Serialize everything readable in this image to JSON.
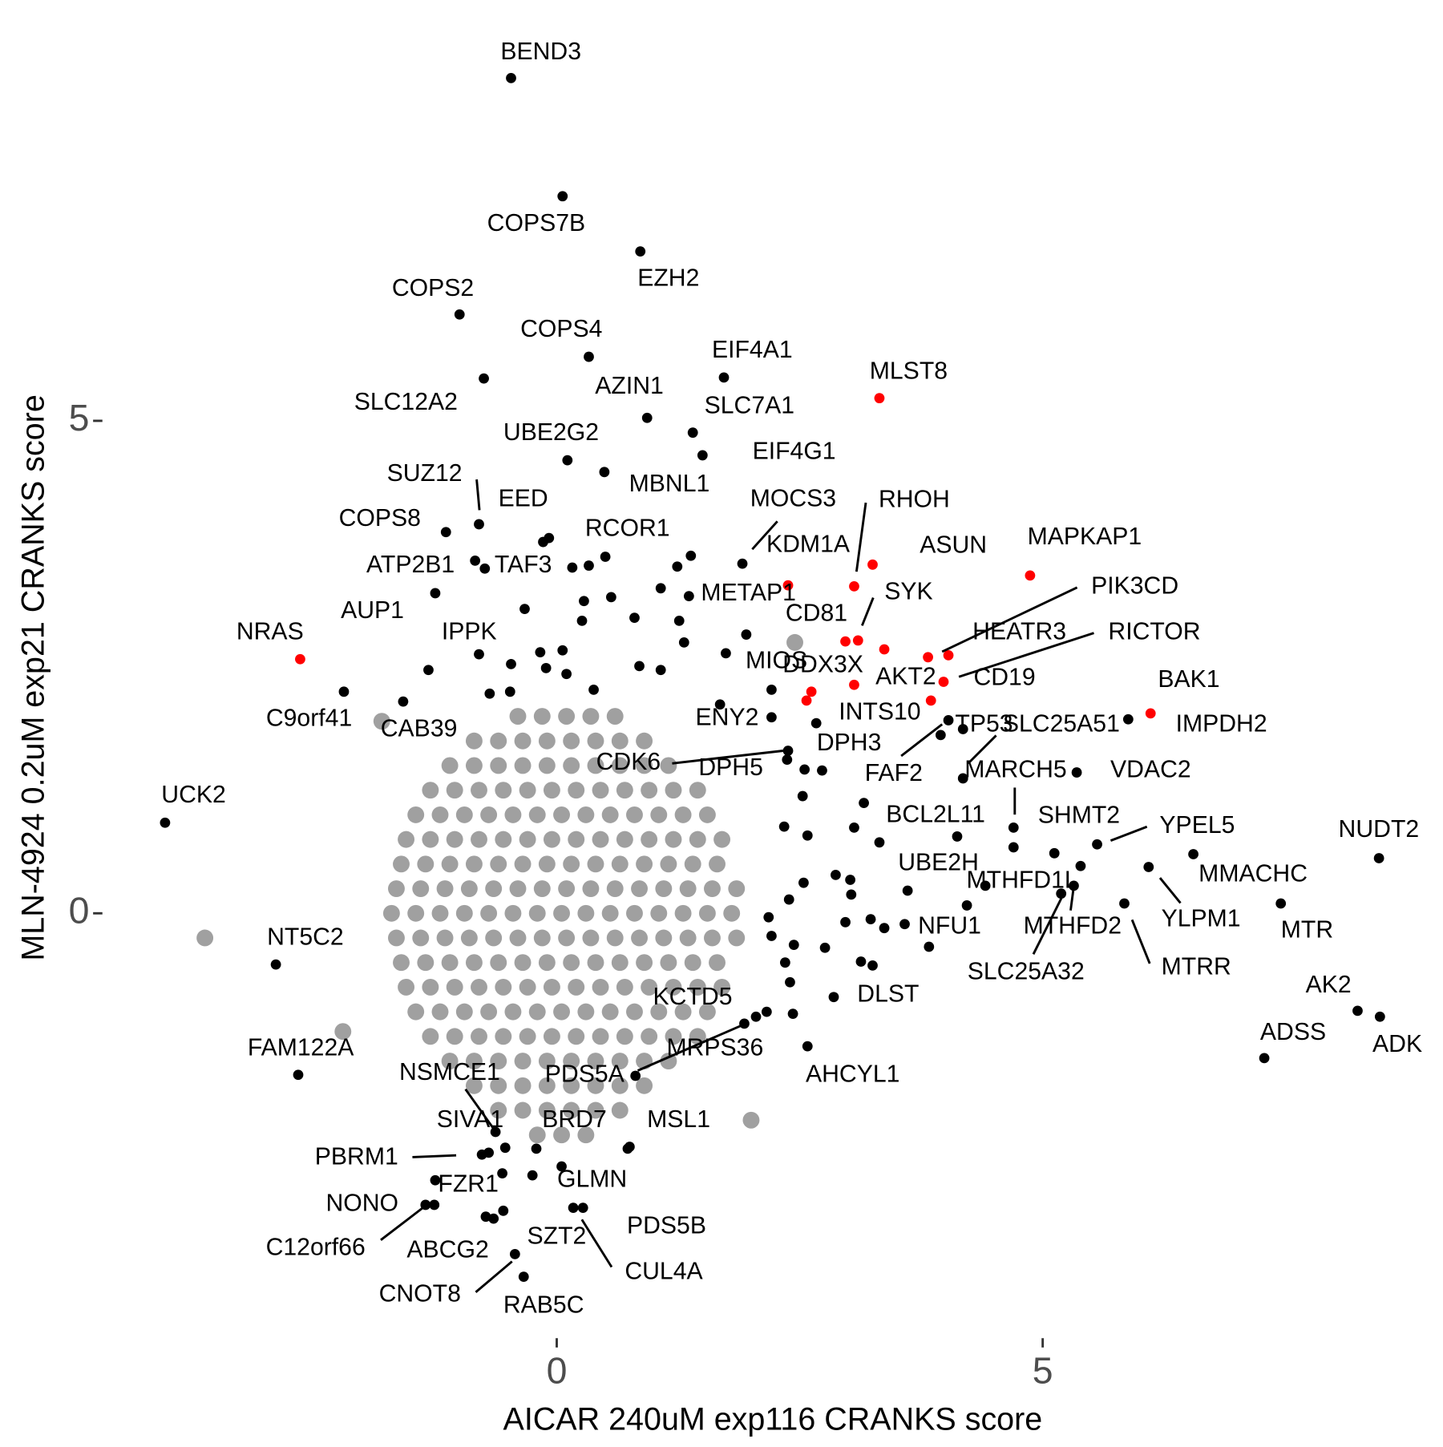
{
  "chart_data": {
    "type": "scatter",
    "xlabel": "AICAR 240uM exp116 CRANKS score",
    "ylabel": "MLN-4924 0.2uM exp21 CRANKS score",
    "xlim": [
      -4.6,
      9.0
    ],
    "ylim": [
      -4.2,
      8.9
    ],
    "xticks": [
      0,
      5
    ],
    "yticks": [
      0,
      5
    ],
    "grid": false,
    "series": [
      {
        "color": "#a0a0a0",
        "x": [
          -0.4,
          -0.15,
          0.1,
          0.35,
          0.6,
          -0.85,
          -0.6,
          -0.35,
          -0.1,
          0.15,
          0.4,
          0.65,
          0.9,
          -1.1,
          -0.85,
          -0.6,
          -0.35,
          -0.1,
          0.15,
          0.4,
          0.65,
          0.9,
          1.15,
          -1.3,
          -1.05,
          -0.8,
          -0.55,
          -0.3,
          -0.05,
          0.2,
          0.45,
          0.7,
          0.95,
          1.2,
          1.45,
          -1.45,
          -1.2,
          -0.95,
          -0.7,
          -0.45,
          -0.2,
          0.05,
          0.3,
          0.55,
          0.8,
          1.05,
          1.3,
          1.55,
          -1.55,
          -1.3,
          -1.05,
          -0.8,
          -0.55,
          -0.3,
          -0.05,
          0.2,
          0.45,
          0.7,
          0.95,
          1.2,
          1.45,
          1.7,
          -1.6,
          -1.35,
          -1.1,
          -0.85,
          -0.6,
          -0.35,
          -0.1,
          0.15,
          0.4,
          0.65,
          0.9,
          1.15,
          1.4,
          1.65,
          -1.65,
          -1.4,
          -1.15,
          -0.9,
          -0.65,
          -0.4,
          -0.15,
          0.1,
          0.35,
          0.6,
          0.85,
          1.1,
          1.35,
          1.6,
          1.85,
          -1.7,
          -1.45,
          -1.2,
          -0.95,
          -0.7,
          -0.45,
          -0.2,
          0.05,
          0.3,
          0.55,
          0.8,
          1.05,
          1.3,
          1.55,
          1.8,
          -1.65,
          -1.4,
          -1.15,
          -0.9,
          -0.65,
          -0.4,
          -0.15,
          0.1,
          0.35,
          0.6,
          0.85,
          1.1,
          1.35,
          1.6,
          1.85,
          -1.6,
          -1.35,
          -1.1,
          -0.85,
          -0.6,
          -0.35,
          -0.1,
          0.15,
          0.4,
          0.65,
          0.9,
          1.15,
          1.4,
          1.65,
          -1.55,
          -1.3,
          -1.05,
          -0.8,
          -0.55,
          -0.3,
          -0.05,
          0.2,
          0.45,
          0.7,
          0.95,
          1.2,
          1.45,
          1.7,
          -1.45,
          -1.2,
          -0.95,
          -0.7,
          -0.45,
          -0.2,
          0.05,
          0.3,
          0.55,
          0.8,
          1.05,
          1.3,
          1.55,
          -1.3,
          -1.05,
          -0.8,
          -0.55,
          -0.3,
          -0.05,
          0.2,
          0.45,
          0.7,
          0.95,
          1.2,
          1.45,
          -1.1,
          -0.85,
          -0.6,
          -0.35,
          -0.1,
          0.15,
          0.4,
          0.65,
          0.9,
          1.15,
          -0.85,
          -0.6,
          -0.35,
          -0.1,
          0.15,
          0.4,
          0.65,
          0.9,
          -0.6,
          -0.35,
          -0.1,
          0.15,
          0.4,
          0.65,
          -0.2,
          0.05,
          0.3,
          -3.62,
          2.45,
          -1.8,
          -2.2,
          2.0
        ],
        "values": [
          2.0,
          2.0,
          2.0,
          2.0,
          2.0,
          1.75,
          1.75,
          1.75,
          1.75,
          1.75,
          1.75,
          1.75,
          1.75,
          1.5,
          1.5,
          1.5,
          1.5,
          1.5,
          1.5,
          1.5,
          1.5,
          1.5,
          1.5,
          1.25,
          1.25,
          1.25,
          1.25,
          1.25,
          1.25,
          1.25,
          1.25,
          1.25,
          1.25,
          1.25,
          1.25,
          1.0,
          1.0,
          1.0,
          1.0,
          1.0,
          1.0,
          1.0,
          1.0,
          1.0,
          1.0,
          1.0,
          1.0,
          1.0,
          0.75,
          0.75,
          0.75,
          0.75,
          0.75,
          0.75,
          0.75,
          0.75,
          0.75,
          0.75,
          0.75,
          0.75,
          0.75,
          0.75,
          0.5,
          0.5,
          0.5,
          0.5,
          0.5,
          0.5,
          0.5,
          0.5,
          0.5,
          0.5,
          0.5,
          0.5,
          0.5,
          0.5,
          0.25,
          0.25,
          0.25,
          0.25,
          0.25,
          0.25,
          0.25,
          0.25,
          0.25,
          0.25,
          0.25,
          0.25,
          0.25,
          0.25,
          0.25,
          0,
          0,
          0,
          0,
          0,
          0,
          0,
          0,
          0,
          0,
          0,
          0,
          0,
          0,
          0,
          -0.25,
          -0.25,
          -0.25,
          -0.25,
          -0.25,
          -0.25,
          -0.25,
          -0.25,
          -0.25,
          -0.25,
          -0.25,
          -0.25,
          -0.25,
          -0.25,
          -0.25,
          -0.5,
          -0.5,
          -0.5,
          -0.5,
          -0.5,
          -0.5,
          -0.5,
          -0.5,
          -0.5,
          -0.5,
          -0.5,
          -0.5,
          -0.5,
          -0.5,
          -0.75,
          -0.75,
          -0.75,
          -0.75,
          -0.75,
          -0.75,
          -0.75,
          -0.75,
          -0.75,
          -0.75,
          -0.75,
          -0.75,
          -0.75,
          -0.75,
          -1.0,
          -1.0,
          -1.0,
          -1.0,
          -1.0,
          -1.0,
          -1.0,
          -1.0,
          -1.0,
          -1.0,
          -1.0,
          -1.0,
          -1.0,
          -1.25,
          -1.25,
          -1.25,
          -1.25,
          -1.25,
          -1.25,
          -1.25,
          -1.25,
          -1.25,
          -1.25,
          -1.25,
          -1.25,
          -1.5,
          -1.5,
          -1.5,
          -1.5,
          -1.5,
          -1.5,
          -1.5,
          -1.5,
          -1.5,
          -1.5,
          -1.75,
          -1.75,
          -1.75,
          -1.75,
          -1.75,
          -1.75,
          -1.75,
          -1.75,
          -2.0,
          -2.0,
          -2.0,
          -2.0,
          -2.0,
          -2.0,
          -2.25,
          -2.25,
          -2.25,
          -0.25,
          2.75,
          1.95,
          -1.2,
          -2.1
        ]
      },
      {
        "color": "#000000",
        "x": [
          -0.47,
          0.06,
          0.86,
          -1.0,
          0.33,
          -0.75,
          0.93,
          1.72,
          1.4,
          0.11,
          0.49,
          1.5,
          -0.8,
          -0.08,
          -1.14,
          0.5,
          -0.84,
          -0.74,
          -1.25,
          -0.8,
          -2.19,
          -1.58,
          -4.03,
          -2.89,
          -2.66,
          1.91,
          1.36,
          2.21,
          1.68,
          2.38,
          2.55,
          2.37,
          2.67,
          4.03,
          3.95,
          4.18,
          4.18,
          5.35,
          5.88,
          4.12,
          4.7,
          5.56,
          8.46,
          4.41,
          5.39,
          6.55,
          6.09,
          7.45,
          3.83,
          5.32,
          5.84,
          5.19,
          8.24,
          8.47,
          7.28,
          2.85,
          2.58,
          2.16,
          1.93,
          2.05,
          -0.63,
          -0.53,
          -0.21,
          0.73,
          -0.77,
          -1.25,
          0.05,
          -1.26,
          -1.35,
          0.27,
          0.17,
          -0.55,
          -0.73,
          -0.43,
          -0.34,
          -0.14,
          0.16,
          0.33,
          1.38,
          1.24,
          0.56,
          0.28,
          1.07,
          -0.33,
          0.26,
          0.8,
          1.26,
          0.06,
          -0.17,
          -0.47,
          -0.11,
          0.1,
          0.38,
          -0.69,
          -0.48,
          0.85,
          1.07,
          1.31,
          -1.32,
          1.95,
          1.74,
          2.21,
          2.73,
          2.53,
          2.34,
          2.58,
          3.16,
          3.06,
          3.32,
          4.7,
          5.12,
          3.02,
          2.87,
          2.54,
          2.39,
          3.03,
          3.61,
          4.22,
          2.18,
          2.21,
          2.44,
          2.97,
          3.23,
          3.37,
          3.58,
          2.76,
          2.35,
          3.13,
          3.25,
          2.4,
          2.43,
          0.81,
          0.75,
          -0.25,
          -0.7,
          -0.56,
          -0.65
        ],
        "values": [
          8.48,
          7.28,
          6.72,
          6.08,
          5.65,
          5.43,
          5.03,
          5.44,
          4.88,
          4.6,
          4.48,
          4.65,
          3.95,
          3.81,
          3.87,
          3.62,
          3.58,
          3.5,
          3.25,
          2.63,
          2.25,
          2.15,
          0.92,
          -0.52,
          -1.64,
          3.55,
          3.22,
          2.27,
          2.12,
          1.65,
          1.46,
          1.56,
          1.93,
          1.96,
          1.81,
          1.87,
          1.37,
          1.43,
          1.97,
          0.78,
          0.87,
          0.7,
          0.56,
          0.28,
          0.48,
          0.6,
          0.47,
          0.1,
          -0.34,
          0.28,
          0.1,
          0.2,
          -0.99,
          -1.05,
          -1.47,
          -0.85,
          -1.35,
          -1.0,
          -1.12,
          -1.05,
          -2.22,
          -2.38,
          -2.39,
          -2.39,
          -2.45,
          -2.71,
          -2.57,
          -2.96,
          -2.96,
          -2.99,
          -2.99,
          -3.02,
          -3.08,
          -3.46,
          -3.69,
          3.77,
          3.51,
          3.53,
          3.63,
          3.52,
          3.21,
          3.17,
          3.3,
          3.09,
          2.97,
          3.0,
          2.97,
          2.67,
          2.65,
          2.53,
          2.49,
          2.43,
          2.27,
          2.23,
          2.25,
          2.51,
          2.47,
          2.75,
          2.47,
          2.83,
          2.64,
          1.99,
          1.45,
          1.19,
          0.88,
          0.79,
          1.12,
          0.87,
          0.72,
          0.67,
          0.61,
          0.34,
          0.39,
          0.31,
          0.14,
          0.19,
          0.23,
          0.08,
          -0.04,
          -0.23,
          -0.32,
          -0.09,
          -0.06,
          -0.15,
          -0.11,
          -0.35,
          -0.5,
          -0.49,
          -0.53,
          -0.7,
          -1.02,
          -1.65,
          -2.37,
          -2.66,
          -2.43,
          -2.64,
          -3.1
        ],
        "labels": [
          "BEND3",
          "COPS7B",
          "EZH2",
          "COPS2",
          "COPS4",
          "SLC12A2",
          "AZIN1",
          "EIF4A1",
          "SLC7A1",
          "UBE2G2",
          "MBNL1",
          "EIF4G1",
          "SUZ12",
          "EED",
          "COPS8",
          "RCOR1",
          "ATP2B1",
          "TAF3",
          "AUP1",
          "IPPK",
          "C9orf41",
          "CAB39",
          "UCK2",
          "NT5C2",
          "FAM122A",
          "MOCS3",
          "METAP1",
          "MIOS",
          "ENY2",
          "CDK6",
          "DPH3",
          "DPH5",
          "INTS10",
          "FAF2",
          "TP53",
          "SLC25A51",
          "MARCH5",
          "VDAC2",
          "IMPDH2",
          "BCL2L11",
          "SHMT2",
          "YPEL5",
          "NUDT2",
          "UBE2H",
          "MTHFD1L",
          "MMACHC",
          "YLPM1",
          "MTR",
          "NFU1",
          "MTHFD2",
          "MTRR",
          "SLC25A32",
          "AK2",
          "ADK",
          "ADSS",
          "DLST",
          "AHCYL1",
          "KCTD5",
          "MRPS36",
          "PDS5A",
          "NSMCE1",
          "SIVA1",
          "BRD7",
          "MSL1",
          "PBRM1",
          "FZR1",
          "GLMN",
          "NONO",
          "C12orf66",
          "PDS5B",
          "CUL4A",
          "SZT2",
          "ABCG2",
          "CNOT8",
          "RAB5C",
          null,
          null,
          null,
          null,
          null,
          null,
          null,
          null,
          null,
          null,
          null,
          null,
          null,
          null,
          null,
          null,
          null,
          null,
          null,
          null,
          null,
          null,
          null,
          null,
          null,
          null,
          null,
          null,
          null,
          null,
          null,
          null,
          null,
          null,
          null,
          null,
          null,
          null,
          null,
          null,
          null,
          null,
          null,
          null,
          null,
          null,
          null,
          null,
          null,
          null,
          null,
          null,
          null,
          null,
          null,
          null,
          null,
          null,
          null,
          null,
          null,
          null
        ]
      },
      {
        "color": "#ff0000",
        "x": [
          -2.64,
          3.32,
          3.06,
          3.25,
          4.87,
          2.38,
          3.1,
          2.97,
          4.03,
          3.82,
          3.98,
          3.85,
          3.06,
          2.62,
          6.11,
          3.37,
          2.57
        ],
        "values": [
          2.58,
          5.23,
          3.32,
          3.54,
          3.43,
          3.33,
          2.77,
          2.76,
          2.62,
          2.6,
          2.35,
          2.16,
          2.32,
          2.25,
          2.03,
          2.68,
          2.16
        ],
        "labels": [
          "NRAS",
          "MLST8",
          "RHOH",
          "ASUN",
          "MAPKAP1",
          "KDM1A",
          "SYK",
          "CD81",
          "PIK3CD",
          "HEATR3",
          "RICTOR",
          "AKT2",
          "CD19",
          "DDX3X",
          "BAK1",
          null,
          null
        ]
      }
    ]
  }
}
